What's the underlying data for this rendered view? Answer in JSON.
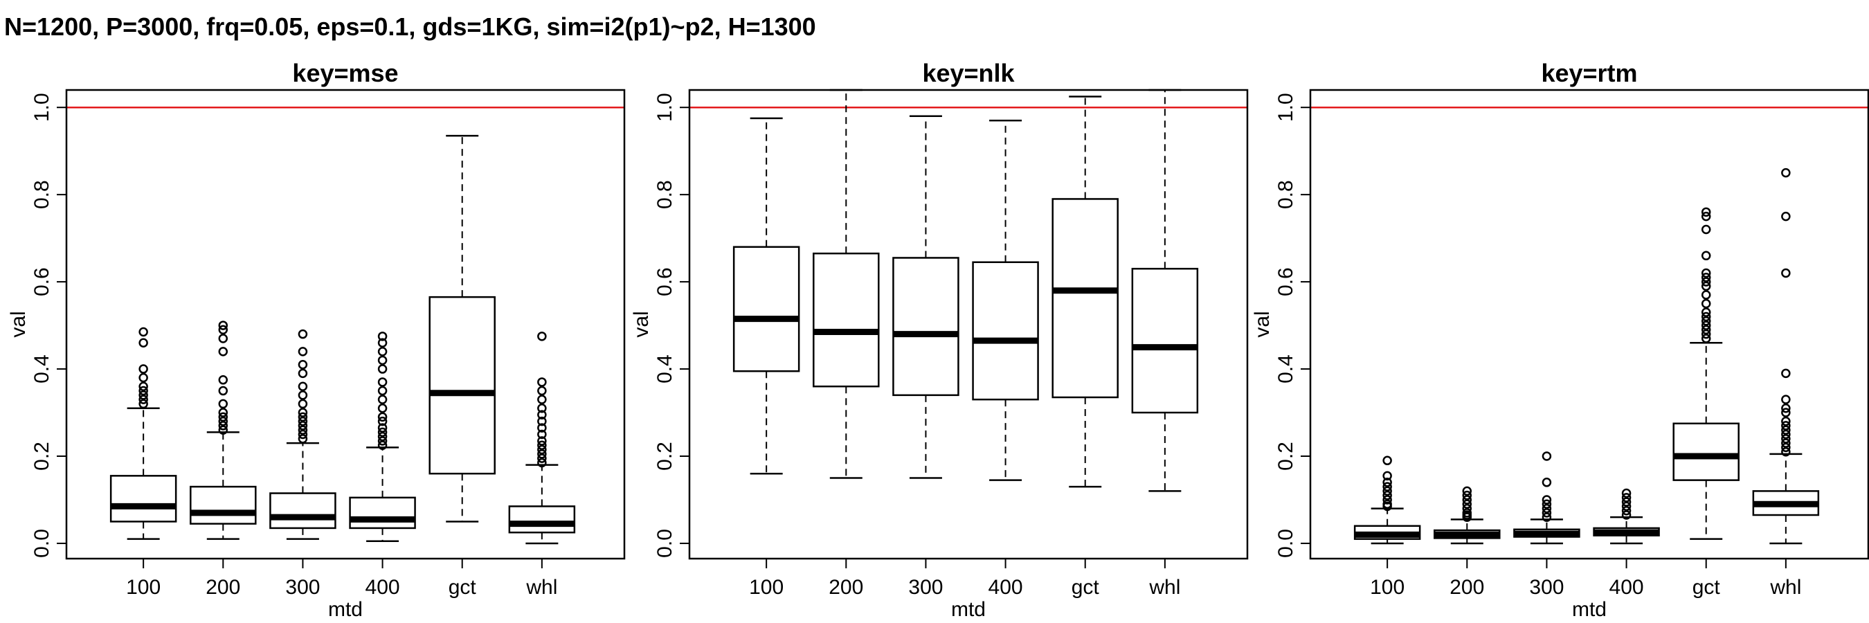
{
  "title": "N=1200, P=3000, frq=0.05, eps=0.1, gds=1KG, sim=i2(p1)~p2, H=1300",
  "colors": {
    "reference_line": "#e31a1c",
    "box": "#000000",
    "background": "#ffffff"
  },
  "chart_data": [
    {
      "type": "box",
      "title": "key=mse",
      "xlabel": "mtd",
      "ylabel": "val",
      "ylim": [
        0,
        1.0
      ],
      "yticks": [
        "0.0",
        "0.2",
        "0.4",
        "0.6",
        "0.8",
        "1.0"
      ],
      "reference_line": 1.0,
      "categories": [
        "100",
        "200",
        "300",
        "400",
        "gct",
        "whl"
      ],
      "boxes": [
        {
          "lower_whisker": 0.01,
          "q1": 0.05,
          "median": 0.085,
          "q3": 0.155,
          "upper_whisker": 0.31,
          "outliers": [
            0.32,
            0.33,
            0.34,
            0.35,
            0.36,
            0.38,
            0.4,
            0.46,
            0.485
          ]
        },
        {
          "lower_whisker": 0.01,
          "q1": 0.045,
          "median": 0.07,
          "q3": 0.13,
          "upper_whisker": 0.255,
          "outliers": [
            0.26,
            0.27,
            0.28,
            0.29,
            0.3,
            0.32,
            0.35,
            0.375,
            0.44,
            0.47,
            0.49,
            0.5
          ]
        },
        {
          "lower_whisker": 0.01,
          "q1": 0.035,
          "median": 0.06,
          "q3": 0.115,
          "upper_whisker": 0.23,
          "outliers": [
            0.24,
            0.25,
            0.26,
            0.27,
            0.28,
            0.29,
            0.3,
            0.32,
            0.34,
            0.36,
            0.39,
            0.41,
            0.44,
            0.48
          ]
        },
        {
          "lower_whisker": 0.005,
          "q1": 0.035,
          "median": 0.055,
          "q3": 0.105,
          "upper_whisker": 0.22,
          "outliers": [
            0.225,
            0.235,
            0.245,
            0.255,
            0.265,
            0.28,
            0.29,
            0.31,
            0.33,
            0.35,
            0.37,
            0.4,
            0.42,
            0.44,
            0.46,
            0.475
          ]
        },
        {
          "lower_whisker": 0.05,
          "q1": 0.16,
          "median": 0.345,
          "q3": 0.565,
          "upper_whisker": 0.935,
          "outliers": []
        },
        {
          "lower_whisker": 0.0,
          "q1": 0.025,
          "median": 0.045,
          "q3": 0.085,
          "upper_whisker": 0.18,
          "outliers": [
            0.185,
            0.195,
            0.205,
            0.215,
            0.225,
            0.235,
            0.25,
            0.265,
            0.28,
            0.295,
            0.31,
            0.33,
            0.35,
            0.37,
            0.475
          ]
        }
      ]
    },
    {
      "type": "box",
      "title": "key=nlk",
      "xlabel": "mtd",
      "ylabel": "val",
      "ylim": [
        0,
        1.0
      ],
      "yticks": [
        "0.0",
        "0.2",
        "0.4",
        "0.6",
        "0.8",
        "1.0"
      ],
      "reference_line": 1.0,
      "categories": [
        "100",
        "200",
        "300",
        "400",
        "gct",
        "whl"
      ],
      "boxes": [
        {
          "lower_whisker": 0.16,
          "q1": 0.395,
          "median": 0.515,
          "q3": 0.68,
          "upper_whisker": 0.975,
          "outliers": []
        },
        {
          "lower_whisker": 0.15,
          "q1": 0.36,
          "median": 0.485,
          "q3": 0.665,
          "upper_whisker": 1.04,
          "outliers": []
        },
        {
          "lower_whisker": 0.15,
          "q1": 0.34,
          "median": 0.48,
          "q3": 0.655,
          "upper_whisker": 0.98,
          "outliers": []
        },
        {
          "lower_whisker": 0.145,
          "q1": 0.33,
          "median": 0.465,
          "q3": 0.645,
          "upper_whisker": 0.97,
          "outliers": []
        },
        {
          "lower_whisker": 0.13,
          "q1": 0.335,
          "median": 0.58,
          "q3": 0.79,
          "upper_whisker": 1.025,
          "outliers": []
        },
        {
          "lower_whisker": 0.12,
          "q1": 0.3,
          "median": 0.45,
          "q3": 0.63,
          "upper_whisker": 1.04,
          "outliers": []
        }
      ]
    },
    {
      "type": "box",
      "title": "key=rtm",
      "xlabel": "mtd",
      "ylabel": "val",
      "ylim": [
        0,
        1.0
      ],
      "yticks": [
        "0.0",
        "0.2",
        "0.4",
        "0.6",
        "0.8",
        "1.0"
      ],
      "reference_line": 1.0,
      "categories": [
        "100",
        "200",
        "300",
        "400",
        "gct",
        "whl"
      ],
      "boxes": [
        {
          "lower_whisker": 0.0,
          "q1": 0.01,
          "median": 0.02,
          "q3": 0.04,
          "upper_whisker": 0.08,
          "outliers": [
            0.085,
            0.09,
            0.1,
            0.11,
            0.12,
            0.13,
            0.14,
            0.155,
            0.19
          ]
        },
        {
          "lower_whisker": 0.0,
          "q1": 0.012,
          "median": 0.02,
          "q3": 0.03,
          "upper_whisker": 0.055,
          "outliers": [
            0.06,
            0.065,
            0.07,
            0.08,
            0.09,
            0.1,
            0.11,
            0.12
          ]
        },
        {
          "lower_whisker": 0.0,
          "q1": 0.015,
          "median": 0.022,
          "q3": 0.032,
          "upper_whisker": 0.055,
          "outliers": [
            0.06,
            0.07,
            0.08,
            0.09,
            0.1,
            0.14,
            0.2
          ]
        },
        {
          "lower_whisker": 0.0,
          "q1": 0.018,
          "median": 0.025,
          "q3": 0.035,
          "upper_whisker": 0.06,
          "outliers": [
            0.065,
            0.075,
            0.085,
            0.095,
            0.105,
            0.115
          ]
        },
        {
          "lower_whisker": 0.01,
          "q1": 0.145,
          "median": 0.2,
          "q3": 0.275,
          "upper_whisker": 0.46,
          "outliers": [
            0.47,
            0.48,
            0.49,
            0.5,
            0.51,
            0.52,
            0.53,
            0.55,
            0.57,
            0.59,
            0.6,
            0.61,
            0.62,
            0.66,
            0.72,
            0.75,
            0.76
          ]
        },
        {
          "lower_whisker": 0.0,
          "q1": 0.065,
          "median": 0.09,
          "q3": 0.12,
          "upper_whisker": 0.205,
          "outliers": [
            0.21,
            0.22,
            0.23,
            0.24,
            0.25,
            0.26,
            0.27,
            0.28,
            0.3,
            0.31,
            0.33,
            0.39,
            0.62,
            0.75,
            0.85
          ]
        }
      ]
    }
  ]
}
